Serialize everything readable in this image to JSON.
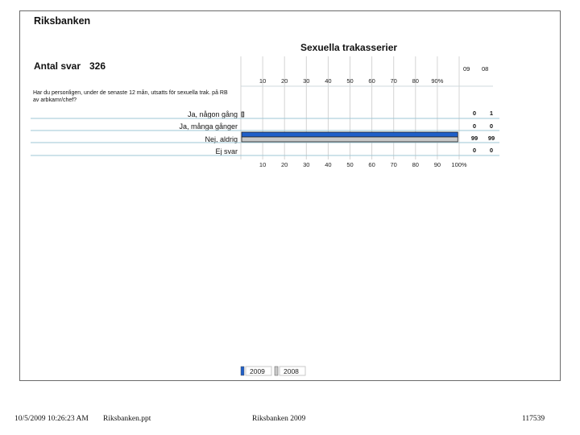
{
  "organization": "Riksbanken",
  "chart_data": {
    "type": "bar",
    "orientation": "horizontal",
    "title": "Sexuella trakasserier",
    "response_count_label": "Antal svar",
    "response_count": "326",
    "question": "Har du personligen, under de senaste 12 mån, utsatts för sexuella trak. på RB av arbkamr/chef?",
    "categories": [
      "Ja, någon gång",
      "Ja, många gånger",
      "Nej, aldrig",
      "Ej svar"
    ],
    "series": [
      {
        "name": "2009",
        "values": [
          0,
          0,
          99,
          0
        ],
        "color": "#1f5fc8"
      },
      {
        "name": "2008",
        "values": [
          1,
          0,
          99,
          0
        ],
        "color": "#c8c8c8"
      }
    ],
    "year_headers": [
      "09",
      "08"
    ],
    "value_table": [
      [
        "0",
        "1"
      ],
      [
        "0",
        "0"
      ],
      [
        "99",
        "99"
      ],
      [
        "0",
        "0"
      ]
    ],
    "xlim": [
      0,
      100
    ],
    "ticks_top": [
      "10",
      "20",
      "30",
      "40",
      "50",
      "60",
      "70",
      "80",
      "90%"
    ],
    "ticks_bottom": [
      "10",
      "20",
      "30",
      "40",
      "50",
      "60",
      "70",
      "80",
      "90",
      "100%"
    ],
    "legend": [
      "2009",
      "2008"
    ],
    "legend_placement": "bottom",
    "grid": true
  },
  "footer": {
    "timestamp": "10/5/2009 10:26:23 AM",
    "file": "Riksbanken.ppt",
    "center": "Riksbanken 2009",
    "number": "117539"
  }
}
